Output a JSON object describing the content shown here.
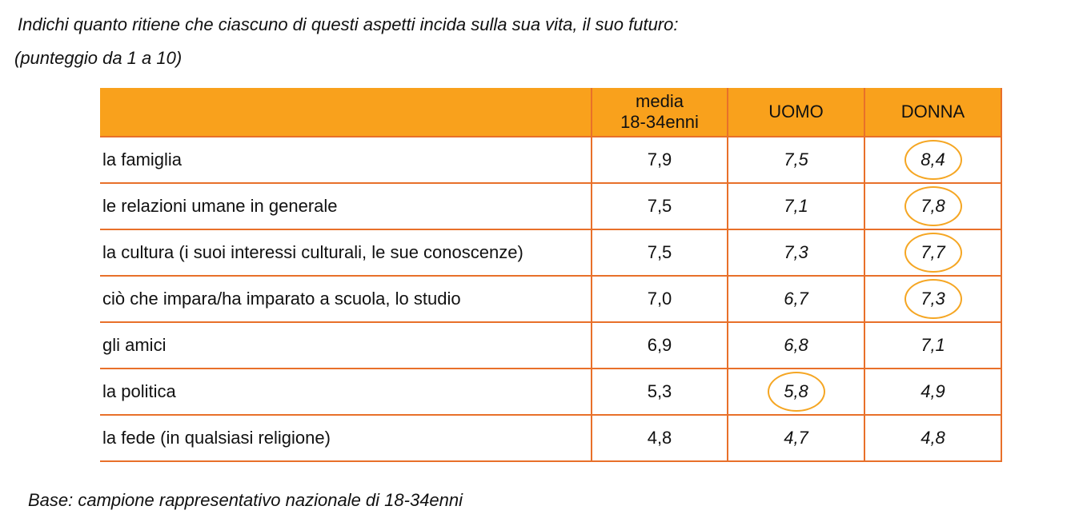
{
  "title": "Indichi quanto ritiene che ciascuno di questi aspetti incida sulla sua vita, il suo futuro:",
  "subtitle": "(punteggio da 1 a 10)",
  "footer": "Base: campione rappresentativo nazionale di 18-34enni",
  "accent_color": "#f9a11c",
  "border_color": "#e8702a",
  "circle_color": "#f5a623",
  "table": {
    "headers": [
      "",
      "media\n18-34enni",
      "UOMO",
      "DONNA"
    ],
    "rows": [
      {
        "label": "la famiglia",
        "media": "7,9",
        "uomo": "7,5",
        "donna": "8,4"
      },
      {
        "label": "le relazioni umane in generale",
        "media": "7,5",
        "uomo": "7,1",
        "donna": "7,8"
      },
      {
        "label": "la cultura (i suoi interessi culturali, le sue conoscenze)",
        "media": "7,5",
        "uomo": "7,3",
        "donna": "7,7"
      },
      {
        "label": "ciò che impara/ha imparato a scuola, lo studio",
        "media": "7,0",
        "uomo": "6,7",
        "donna": "7,3"
      },
      {
        "label": "gli amici",
        "media": "6,9",
        "uomo": "6,8",
        "donna": "7,1"
      },
      {
        "label": "la politica",
        "media": "5,3",
        "uomo": "5,8",
        "donna": "4,9"
      },
      {
        "label": "la fede (in qualsiasi religione)",
        "media": "4,8",
        "uomo": "4,7",
        "donna": "4,8"
      }
    ],
    "highlighted": [
      {
        "row": 0,
        "col": "donna"
      },
      {
        "row": 1,
        "col": "donna"
      },
      {
        "row": 2,
        "col": "donna"
      },
      {
        "row": 3,
        "col": "donna"
      },
      {
        "row": 5,
        "col": "uomo"
      }
    ]
  }
}
